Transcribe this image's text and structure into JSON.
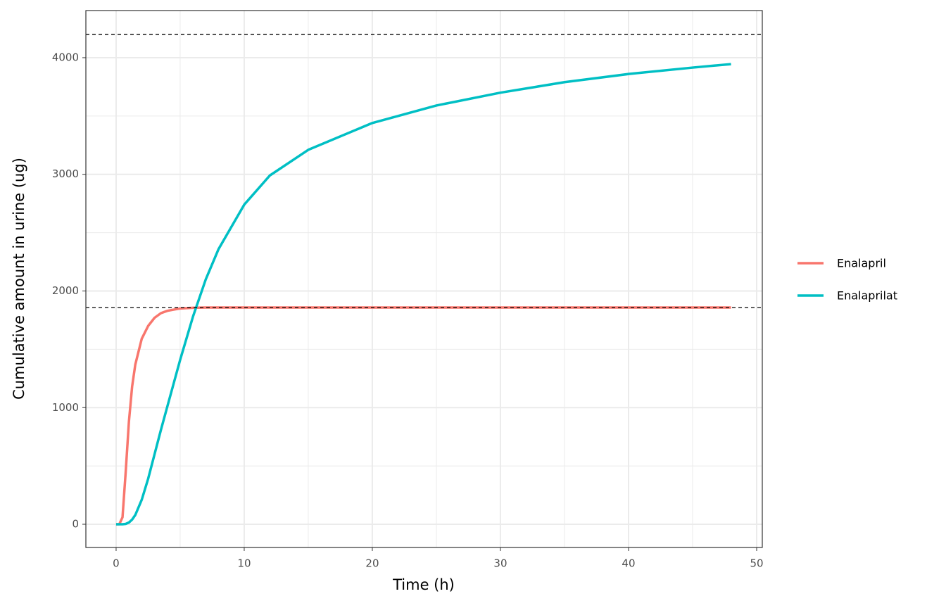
{
  "chart_data": {
    "type": "line",
    "x_label": "Time (h)",
    "y_label": "Cumulative amount in urine (ug)",
    "x": [
      0,
      0.25,
      0.5,
      0.75,
      1,
      1.25,
      1.5,
      2,
      2.5,
      3,
      3.5,
      4,
      5,
      6,
      7,
      8,
      10,
      12,
      15,
      20,
      25,
      30,
      35,
      40,
      45,
      48
    ],
    "series": [
      {
        "name": "Enalapril",
        "color": "#F8766D",
        "values": [
          0,
          0,
          60,
          450,
          880,
          1180,
          1370,
          1590,
          1700,
          1770,
          1810,
          1830,
          1850,
          1856,
          1858,
          1858,
          1858,
          1858,
          1858,
          1858,
          1858,
          1858,
          1858,
          1858,
          1858,
          1858
        ]
      },
      {
        "name": "Enalaprilat",
        "color": "#00BFC4",
        "values": [
          0,
          0,
          0,
          3,
          15,
          40,
          80,
          210,
          390,
          600,
          810,
          1010,
          1410,
          1780,
          2100,
          2360,
          2740,
          2990,
          3210,
          3440,
          3590,
          3700,
          3790,
          3860,
          3915,
          3945
        ]
      }
    ],
    "hlines": [
      4200,
      1858
    ],
    "xlim": [
      -2.36,
      50.44
    ],
    "ylim": [
      -199,
      4404
    ],
    "xticks": [
      0,
      10,
      20,
      30,
      40,
      50
    ],
    "yticks": [
      0,
      1000,
      2000,
      3000,
      4000
    ],
    "grid": true,
    "legend": "right"
  }
}
